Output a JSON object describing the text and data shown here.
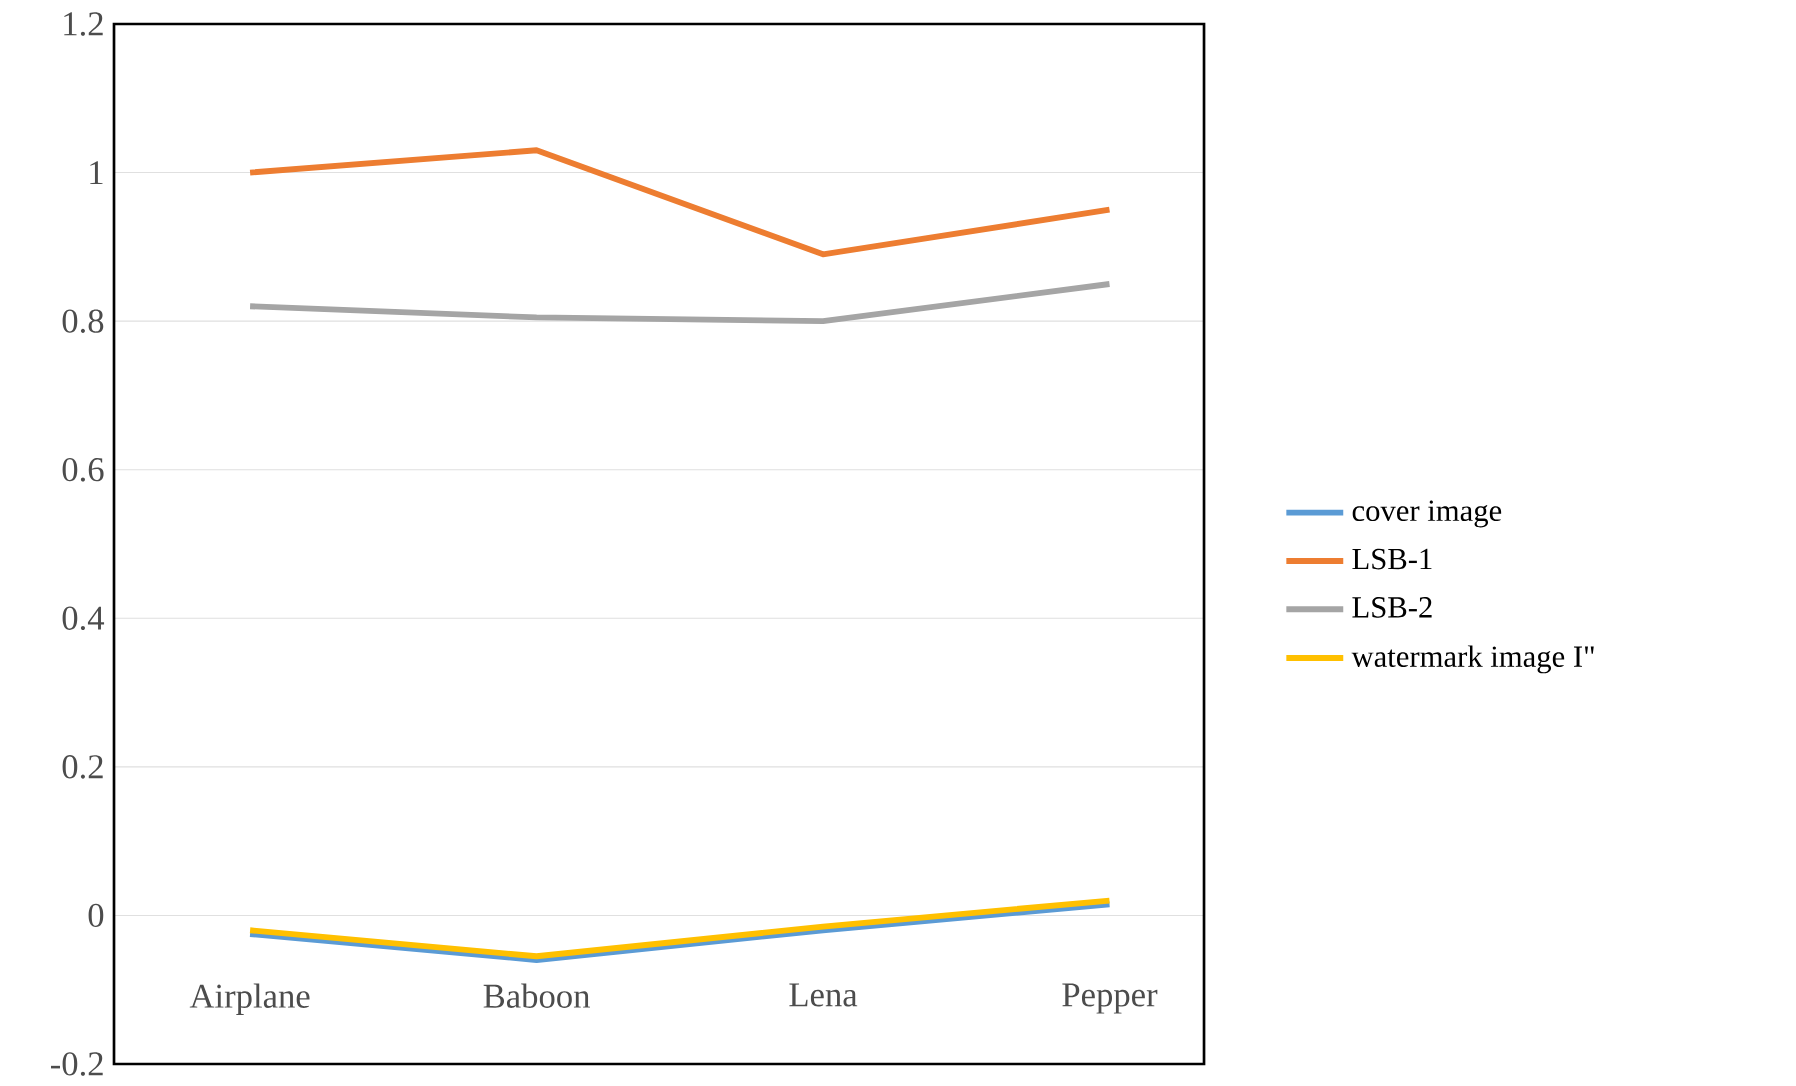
{
  "chart_data": {
    "type": "line",
    "categories": [
      "Airplane",
      "Baboon",
      "Lena",
      "Pepper"
    ],
    "series": [
      {
        "name": "cover image",
        "color": "#5b9bd5",
        "values": [
          -0.025,
          -0.06,
          -0.02,
          0.015
        ]
      },
      {
        "name": "LSB-1",
        "color": "#ed7d31",
        "values": [
          1.0,
          1.03,
          0.89,
          0.95
        ]
      },
      {
        "name": "LSB-2",
        "color": "#a5a5a5",
        "values": [
          0.82,
          0.805,
          0.8,
          0.85
        ]
      },
      {
        "name": "watermark image I\"",
        "color": "#ffc000",
        "values": [
          -0.02,
          -0.055,
          -0.015,
          0.02
        ]
      }
    ],
    "ylim": [
      -0.2,
      1.2
    ],
    "yticks": [
      -0.2,
      0,
      0.2,
      0.4,
      0.6,
      0.8,
      1,
      1.2
    ],
    "grid": "y",
    "legend": "right",
    "marker": "none",
    "line_style": "solid"
  }
}
